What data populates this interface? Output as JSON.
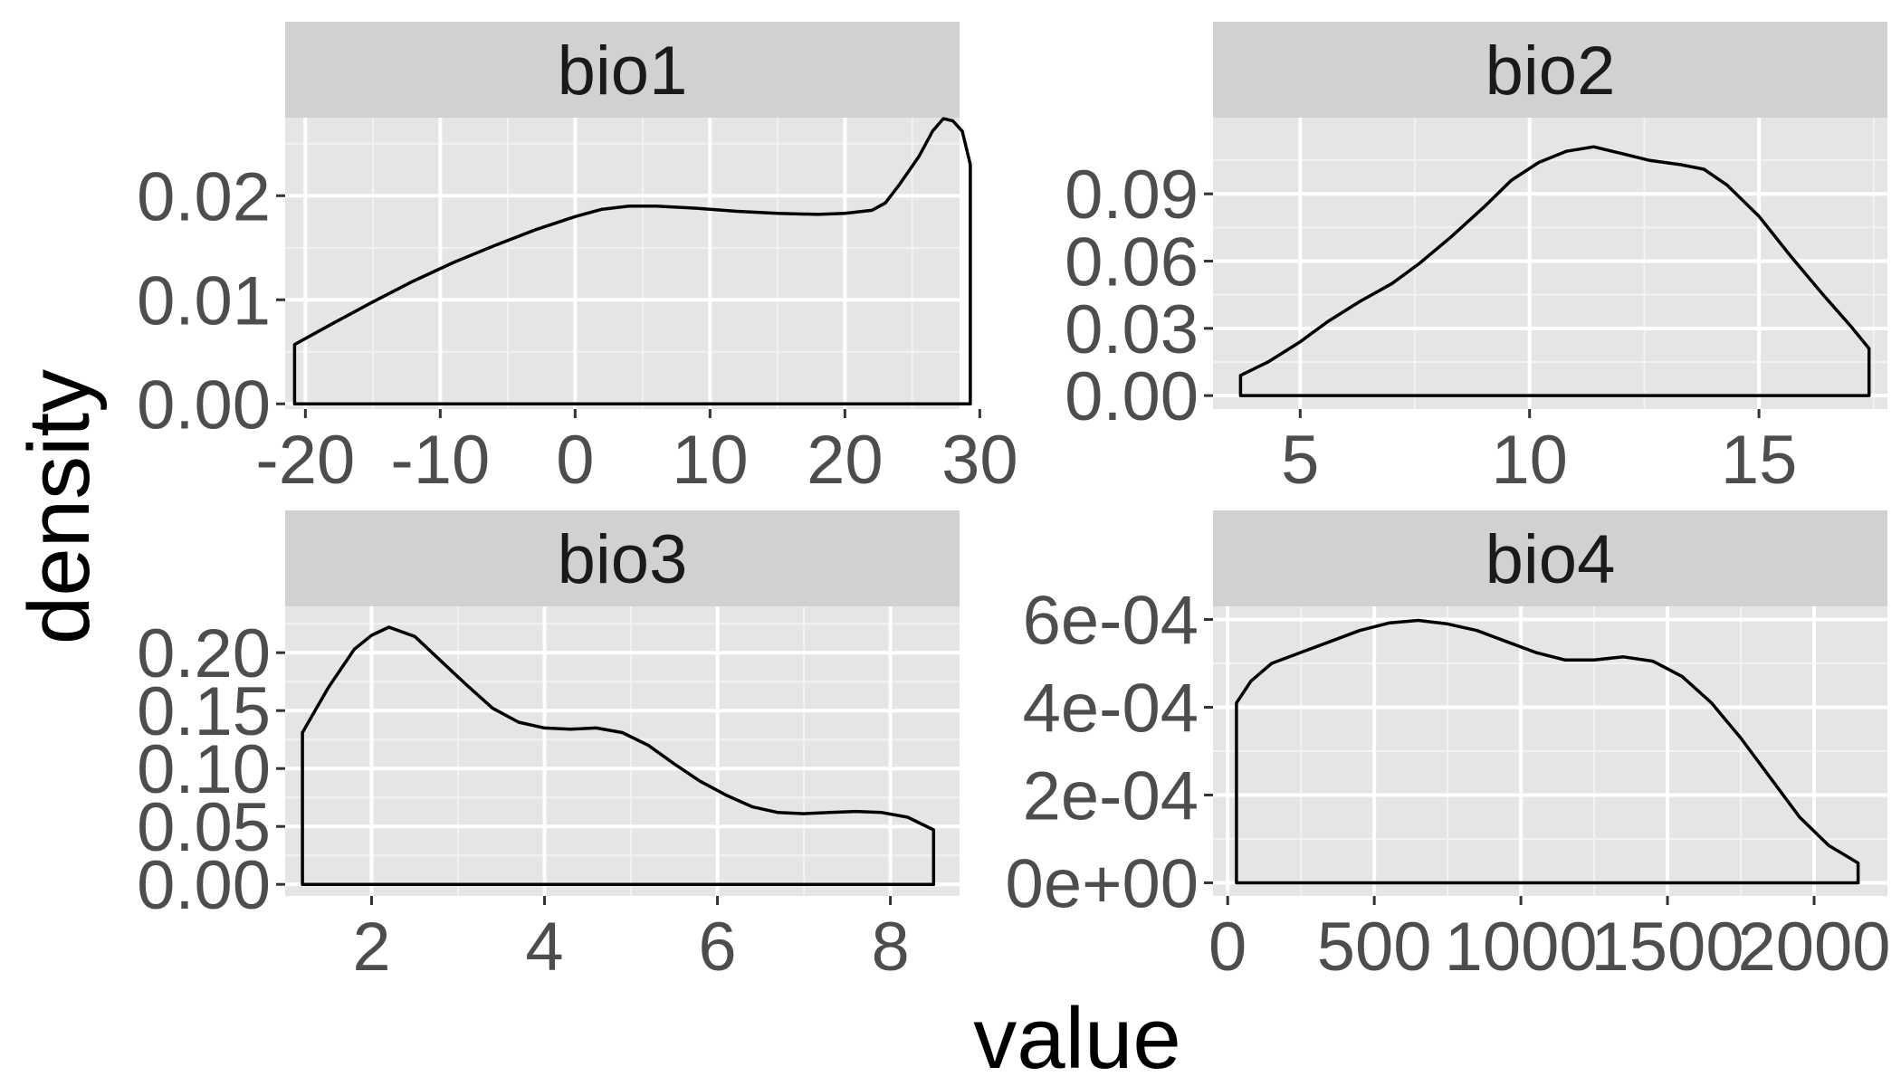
{
  "chart_data": {
    "type": "area",
    "facet_layout": "2x2",
    "xlabel": "value",
    "ylabel": "density",
    "panel_background": "#e5e5e5",
    "strip_background": "#d1d1d1",
    "line_color": "#000000",
    "panels": [
      {
        "title": "bio1",
        "xlim": [
          -21.5,
          28.5
        ],
        "ylim": [
          -0.0005,
          0.0275
        ],
        "xticks": [
          -20,
          -10,
          0,
          10,
          20,
          30
        ],
        "xtick_labels": [
          "-20",
          "-10",
          "0",
          "10",
          "20",
          "30"
        ],
        "yticks": [
          0,
          0.01,
          0.02
        ],
        "ytick_labels": [
          "0.00",
          "0.01",
          "0.02"
        ],
        "points": [
          [
            -20.8,
            0.0057
          ],
          [
            -18,
            0.0077
          ],
          [
            -15,
            0.0098
          ],
          [
            -12,
            0.0118
          ],
          [
            -9,
            0.0136
          ],
          [
            -6,
            0.0152
          ],
          [
            -3,
            0.0167
          ],
          [
            0,
            0.018
          ],
          [
            2,
            0.0187
          ],
          [
            4,
            0.019
          ],
          [
            6,
            0.019
          ],
          [
            9,
            0.0188
          ],
          [
            12,
            0.0185
          ],
          [
            15,
            0.0183
          ],
          [
            18,
            0.0182
          ],
          [
            20,
            0.0183
          ],
          [
            22,
            0.0186
          ],
          [
            23,
            0.0193
          ],
          [
            24,
            0.021
          ],
          [
            25.5,
            0.0238
          ],
          [
            26.5,
            0.0262
          ],
          [
            27.3,
            0.0274
          ],
          [
            28,
            0.0272
          ],
          [
            28.7,
            0.0262
          ],
          [
            29.3,
            0.023
          ]
        ]
      },
      {
        "title": "bio2",
        "xlim": [
          3.1,
          17.8
        ],
        "ylim": [
          -0.006,
          0.124
        ],
        "xticks": [
          5,
          10,
          15
        ],
        "xtick_labels": [
          "5",
          "10",
          "15"
        ],
        "yticks": [
          0,
          0.03,
          0.06,
          0.09
        ],
        "ytick_labels": [
          "0.00",
          "0.03",
          "0.06",
          "0.09"
        ],
        "points": [
          [
            3.7,
            0.009
          ],
          [
            4.3,
            0.015
          ],
          [
            5,
            0.024
          ],
          [
            5.6,
            0.033
          ],
          [
            6.3,
            0.042
          ],
          [
            7,
            0.05
          ],
          [
            7.6,
            0.059
          ],
          [
            8.3,
            0.071
          ],
          [
            9,
            0.084
          ],
          [
            9.6,
            0.096
          ],
          [
            10.2,
            0.104
          ],
          [
            10.8,
            0.109
          ],
          [
            11.4,
            0.111
          ],
          [
            12,
            0.108
          ],
          [
            12.6,
            0.105
          ],
          [
            13.3,
            0.103
          ],
          [
            13.8,
            0.101
          ],
          [
            14.3,
            0.094
          ],
          [
            15,
            0.08
          ],
          [
            15.7,
            0.062
          ],
          [
            16.4,
            0.045
          ],
          [
            17,
            0.031
          ],
          [
            17.4,
            0.021
          ]
        ]
      },
      {
        "title": "bio3",
        "xlim": [
          1.0,
          8.8
        ],
        "ylim": [
          -0.01,
          0.24
        ],
        "xticks": [
          2,
          4,
          6,
          8
        ],
        "xtick_labels": [
          "2",
          "4",
          "6",
          "8"
        ],
        "yticks": [
          0,
          0.05,
          0.1,
          0.15,
          0.2
        ],
        "ytick_labels": [
          "0.00",
          "0.05",
          "0.10",
          "0.15",
          "0.20"
        ],
        "points": [
          [
            1.2,
            0.131
          ],
          [
            1.5,
            0.17
          ],
          [
            1.8,
            0.203
          ],
          [
            2.0,
            0.215
          ],
          [
            2.2,
            0.222
          ],
          [
            2.5,
            0.214
          ],
          [
            2.8,
            0.193
          ],
          [
            3.1,
            0.172
          ],
          [
            3.4,
            0.152
          ],
          [
            3.7,
            0.14
          ],
          [
            4.0,
            0.135
          ],
          [
            4.3,
            0.134
          ],
          [
            4.6,
            0.135
          ],
          [
            4.9,
            0.131
          ],
          [
            5.2,
            0.12
          ],
          [
            5.5,
            0.104
          ],
          [
            5.8,
            0.089
          ],
          [
            6.1,
            0.077
          ],
          [
            6.4,
            0.067
          ],
          [
            6.7,
            0.062
          ],
          [
            7.0,
            0.061
          ],
          [
            7.3,
            0.062
          ],
          [
            7.6,
            0.063
          ],
          [
            7.9,
            0.062
          ],
          [
            8.2,
            0.058
          ],
          [
            8.5,
            0.047
          ]
        ]
      },
      {
        "title": "bio4",
        "xlim": [
          -50,
          2250
        ],
        "ylim": [
          -3e-05,
          0.00063
        ],
        "xticks": [
          0,
          500,
          1000,
          1500,
          2000
        ],
        "xtick_labels": [
          "0",
          "500",
          "1000",
          "1500",
          "2000"
        ],
        "yticks": [
          0,
          0.0002,
          0.0004,
          0.0006
        ],
        "ytick_labels": [
          "0e+00",
          "2e-04",
          "4e-04",
          "6e-04"
        ],
        "points": [
          [
            30,
            0.00041
          ],
          [
            80,
            0.00046
          ],
          [
            150,
            0.0005
          ],
          [
            250,
            0.000525
          ],
          [
            350,
            0.00055
          ],
          [
            450,
            0.000575
          ],
          [
            550,
            0.000592
          ],
          [
            650,
            0.000598
          ],
          [
            750,
            0.00059
          ],
          [
            850,
            0.000575
          ],
          [
            950,
            0.00055
          ],
          [
            1050,
            0.000525
          ],
          [
            1150,
            0.000508
          ],
          [
            1250,
            0.000508
          ],
          [
            1350,
            0.000515
          ],
          [
            1450,
            0.000505
          ],
          [
            1550,
            0.00047
          ],
          [
            1650,
            0.00041
          ],
          [
            1750,
            0.00033
          ],
          [
            1850,
            0.00024
          ],
          [
            1950,
            0.00015
          ],
          [
            2050,
            8.5e-05
          ],
          [
            2150,
            4.5e-05
          ]
        ]
      }
    ]
  }
}
